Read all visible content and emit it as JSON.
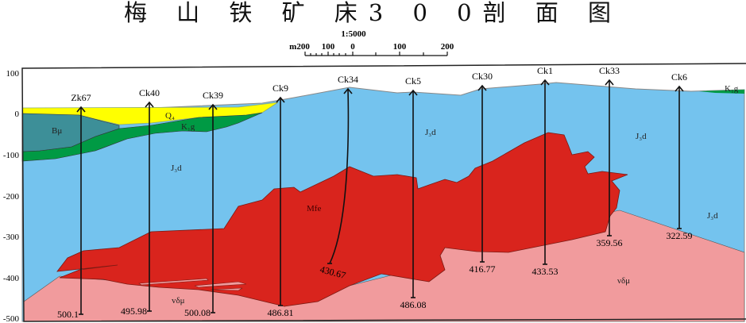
{
  "title": "梅 山 铁 矿 床3 0 0剖 面 图",
  "scale": {
    "ratio": "1:5000",
    "labels": [
      "m200",
      "100",
      "0",
      "100",
      "200"
    ]
  },
  "y_axis": {
    "ticks": [
      "100",
      "0",
      "-100",
      "-200",
      "-300",
      "-400",
      "-500"
    ]
  },
  "units": [
    {
      "code": "Q4",
      "label": "Q₄",
      "color": "#ffff00"
    },
    {
      "code": "K1g",
      "label": "K₁g",
      "color": "#009a44"
    },
    {
      "code": "Bμ",
      "label": "Bμ",
      "color": "#3d8f98"
    },
    {
      "code": "J3d",
      "label": "J₃d",
      "color": "#74c3ee"
    },
    {
      "code": "Mfe",
      "label": "Mfe",
      "color": "#d9241d"
    },
    {
      "code": "vδμ",
      "label": "νδμ",
      "color": "#f19b9d"
    }
  ],
  "labels": {
    "q4": "Q₄",
    "k1g_left": "K₁g",
    "k1g_right": "K₁g",
    "bmu": "Bμ",
    "j3d_1": "J₃d",
    "j3d_2": "J₃d",
    "j3d_3": "J₃d",
    "j3d_4": "J₃d",
    "mfe": "Mfe",
    "vdm_1": "νδμ",
    "vdm_2": "νδμ"
  },
  "drillholes": [
    {
      "name": "Zk67",
      "depth": "500.1"
    },
    {
      "name": "Ck40",
      "depth": "495.98"
    },
    {
      "name": "Ck39",
      "depth": "500.08"
    },
    {
      "name": "Ck9",
      "depth": "486.81"
    },
    {
      "name": "Ck34",
      "depth": "430.67"
    },
    {
      "name": "Ck5",
      "depth": "486.08"
    },
    {
      "name": "Ck30",
      "depth": "416.77"
    },
    {
      "name": "Ck1",
      "depth": "433.53"
    },
    {
      "name": "Ck33",
      "depth": "359.56"
    },
    {
      "name": "Ck6",
      "depth": "322.59"
    }
  ]
}
